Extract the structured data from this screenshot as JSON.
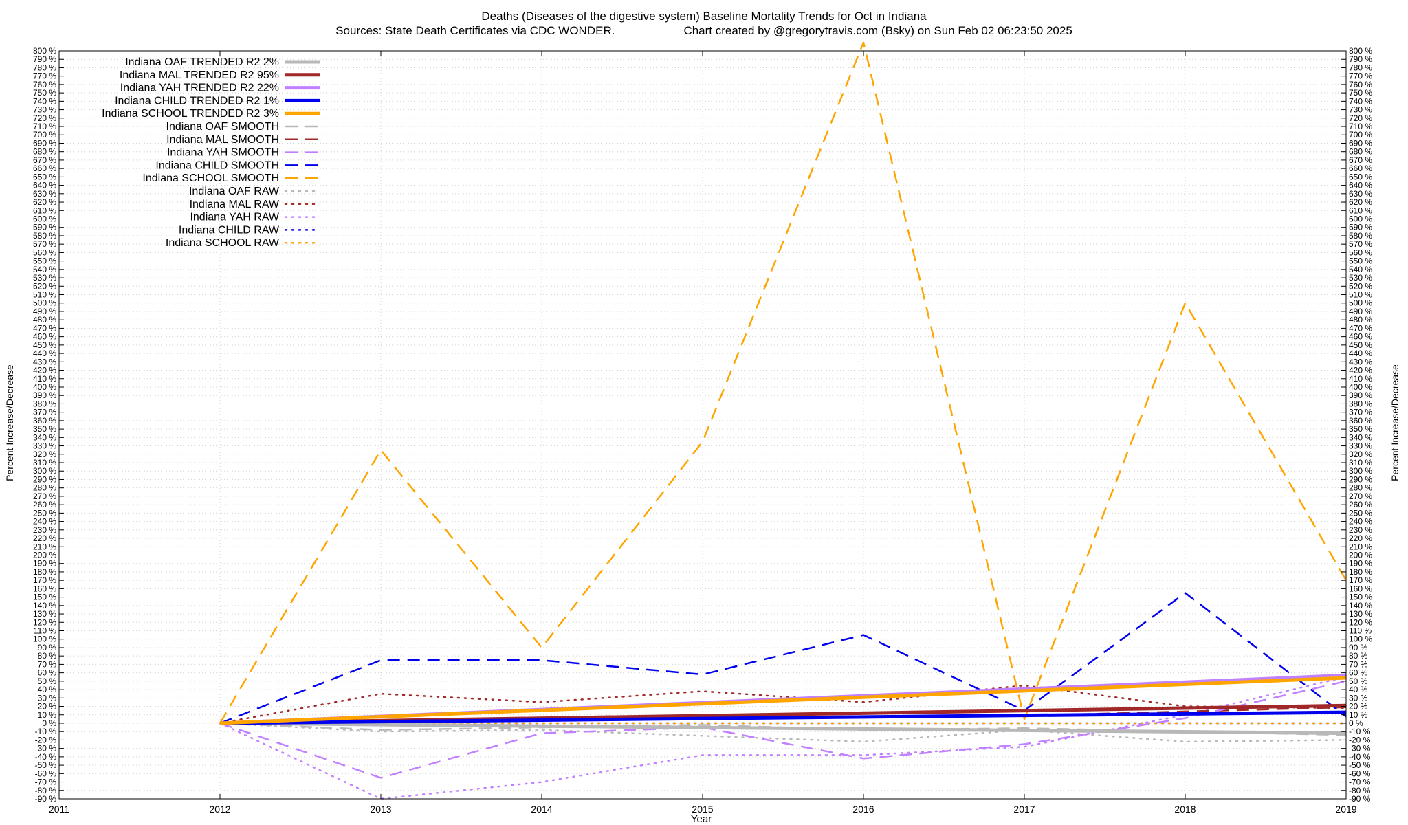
{
  "header": {
    "title": "Deaths (Diseases of the digestive system)  Baseline Mortality Trends for Oct in Indiana",
    "sources": "Sources: State Death Certificates via CDC WONDER.",
    "credit": "Chart created by @gregorytravis.com (Bsky) on Sun Feb 02 06:23:50 2025"
  },
  "colors": {
    "OAF": "#b8b8b8",
    "MAL": "#a02828",
    "YAH": "#c080ff",
    "CHILD": "#0000ee",
    "SCHOOL": "#ffa500"
  },
  "chart_data": {
    "type": "line",
    "title": "Deaths (Diseases of the digestive system)  Baseline Mortality Trends for Oct in Indiana",
    "xlabel": "Year",
    "ylabel": "Percent Increase/Decrease",
    "y2label": "Percent Increase/Decrease",
    "xlim": [
      2011,
      2019
    ],
    "ylim": [
      -90,
      800
    ],
    "grid": true,
    "legend_position": "top-left",
    "x_ticks": [
      "2011",
      "2012",
      "2013",
      "2014",
      "2015",
      "2016",
      "2017",
      "2018",
      "2019"
    ],
    "y_tick_suffix": " %",
    "series": [
      {
        "name": "Indiana OAF TRENDED R2  2%",
        "group": "OAF",
        "style": "trend",
        "x": [
          2012,
          2019
        ],
        "y": [
          0,
          -12
        ]
      },
      {
        "name": "Indiana MAL TRENDED R2  95%",
        "group": "MAL",
        "style": "trend",
        "x": [
          2012,
          2019
        ],
        "y": [
          0,
          21
        ]
      },
      {
        "name": "Indiana YAH TRENDED R2  22%",
        "group": "YAH",
        "style": "trend",
        "x": [
          2012,
          2019
        ],
        "y": [
          0,
          57
        ]
      },
      {
        "name": "Indiana CHILD TRENDED R2  1%",
        "group": "CHILD",
        "style": "trend",
        "x": [
          2012,
          2019
        ],
        "y": [
          0,
          13
        ]
      },
      {
        "name": "Indiana SCHOOL TRENDED R2  3%",
        "group": "SCHOOL",
        "style": "trend",
        "x": [
          2012,
          2019
        ],
        "y": [
          0,
          54
        ]
      },
      {
        "name": "Indiana OAF SMOOTH",
        "group": "OAF",
        "style": "smooth",
        "x": [
          2012,
          2013,
          2014,
          2015,
          2016,
          2017,
          2018,
          2019
        ],
        "y": [
          0,
          -8,
          -5,
          -2,
          -8,
          -6,
          -10,
          -14
        ]
      },
      {
        "name": "Indiana MAL SMOOTH",
        "group": "MAL",
        "style": "smooth",
        "x": [
          2012,
          2013,
          2014,
          2015,
          2016,
          2017,
          2018,
          2019
        ],
        "y": [
          0,
          3,
          5,
          7,
          8,
          9,
          14,
          19
        ]
      },
      {
        "name": "Indiana YAH SMOOTH",
        "group": "YAH",
        "style": "smooth",
        "x": [
          2012,
          2013,
          2014,
          2015,
          2016,
          2017,
          2018,
          2019
        ],
        "y": [
          0,
          -65,
          -12,
          -5,
          -42,
          -25,
          6,
          50
        ]
      },
      {
        "name": "Indiana CHILD SMOOTH",
        "group": "CHILD",
        "style": "smooth",
        "x": [
          2012,
          2013,
          2014,
          2015,
          2016,
          2017,
          2018,
          2019
        ],
        "y": [
          0,
          75,
          75,
          58,
          105,
          15,
          155,
          8
        ]
      },
      {
        "name": "Indiana SCHOOL SMOOTH",
        "group": "SCHOOL",
        "style": "smooth",
        "x": [
          2012,
          2013,
          2014,
          2015,
          2016,
          2017,
          2018,
          2019
        ],
        "y": [
          0,
          325,
          90,
          335,
          810,
          5,
          500,
          170
        ]
      },
      {
        "name": "Indiana OAF RAW",
        "group": "OAF",
        "style": "raw",
        "x": [
          2012,
          2013,
          2014,
          2015,
          2016,
          2017,
          2018,
          2019
        ],
        "y": [
          0,
          -10,
          -8,
          -15,
          -22,
          -8,
          -22,
          -20
        ]
      },
      {
        "name": "Indiana MAL RAW",
        "group": "MAL",
        "style": "raw",
        "x": [
          2012,
          2013,
          2014,
          2015,
          2016,
          2017,
          2018,
          2019
        ],
        "y": [
          0,
          35,
          25,
          38,
          25,
          45,
          20,
          18
        ]
      },
      {
        "name": "Indiana YAH RAW",
        "group": "YAH",
        "style": "raw",
        "x": [
          2012,
          2013,
          2014,
          2015,
          2016,
          2017,
          2018,
          2019
        ],
        "y": [
          0,
          -90,
          -70,
          -38,
          -38,
          -28,
          10,
          55
        ]
      },
      {
        "name": "Indiana CHILD RAW",
        "group": "CHILD",
        "style": "raw",
        "x": [
          2012,
          2013,
          2014,
          2015,
          2016,
          2017,
          2018,
          2019
        ],
        "y": [
          0,
          0,
          0,
          0,
          0,
          0,
          0,
          0
        ]
      },
      {
        "name": "Indiana SCHOOL RAW",
        "group": "SCHOOL",
        "style": "raw",
        "x": [
          2012,
          2013,
          2014,
          2015,
          2016,
          2017,
          2018,
          2019
        ],
        "y": [
          0,
          0,
          0,
          0,
          0,
          0,
          0,
          0
        ]
      }
    ]
  }
}
